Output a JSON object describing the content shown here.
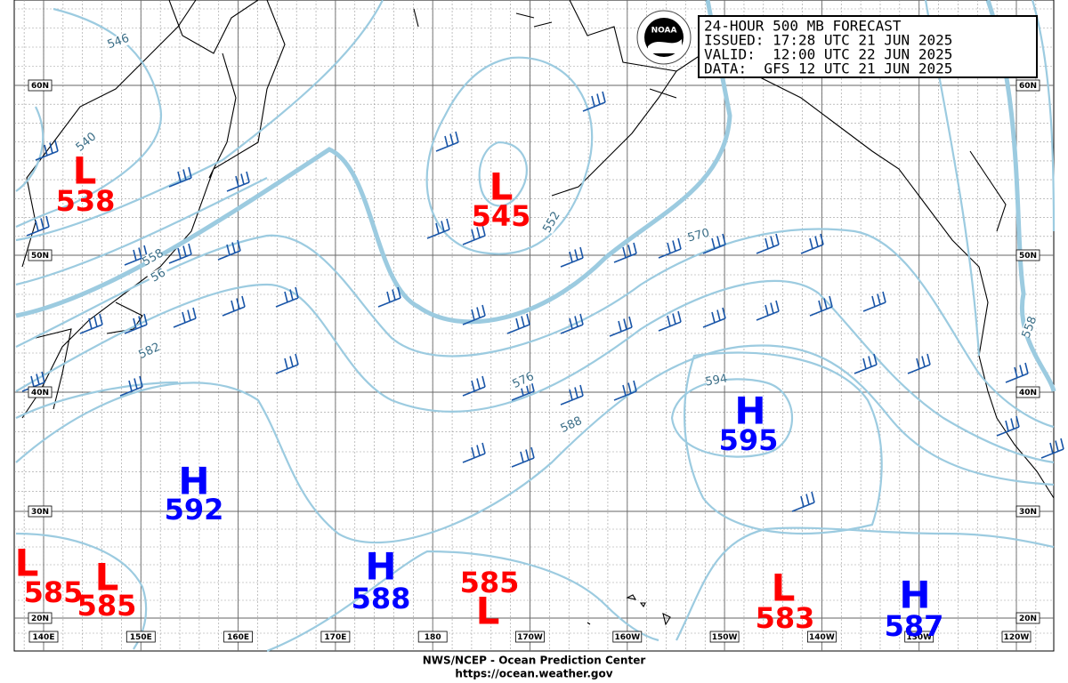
{
  "header": {
    "lines": [
      "24-HOUR 500 MB FORECAST",
      "ISSUED: 17:28 UTC 21 JUN 2025",
      "VALID:  12:00 UTC 22 JUN 2025",
      "DATA:  GFS 12 UTC 21 JUN 2025"
    ],
    "logo": "NOAA"
  },
  "lat_labels": [
    "60N",
    "50N",
    "40N",
    "30N",
    "20N"
  ],
  "lon_labels": [
    "140E",
    "150E",
    "160E",
    "170E",
    "180",
    "170W",
    "160W",
    "150W",
    "140W",
    "130W",
    "120W"
  ],
  "centers": [
    {
      "symbol": "L",
      "value": "538"
    },
    {
      "symbol": "L",
      "value": "545"
    },
    {
      "symbol": "H",
      "value": "595"
    },
    {
      "symbol": "H",
      "value": "592"
    },
    {
      "symbol": "L",
      "value": "585"
    },
    {
      "symbol": "L",
      "value": "585"
    },
    {
      "symbol": "H",
      "value": "588"
    },
    {
      "symbol": "L",
      "value": "585"
    },
    {
      "symbol": "L",
      "value": "583"
    },
    {
      "symbol": "H",
      "value": "587"
    }
  ],
  "contour_labels": [
    "546",
    "540",
    "558",
    "56",
    "552",
    "570",
    "582",
    "576",
    "588",
    "594",
    "558"
  ],
  "footer": {
    "agency": "NWS/NCEP - Ocean Prediction Center",
    "url": "https://ocean.weather.gov"
  }
}
